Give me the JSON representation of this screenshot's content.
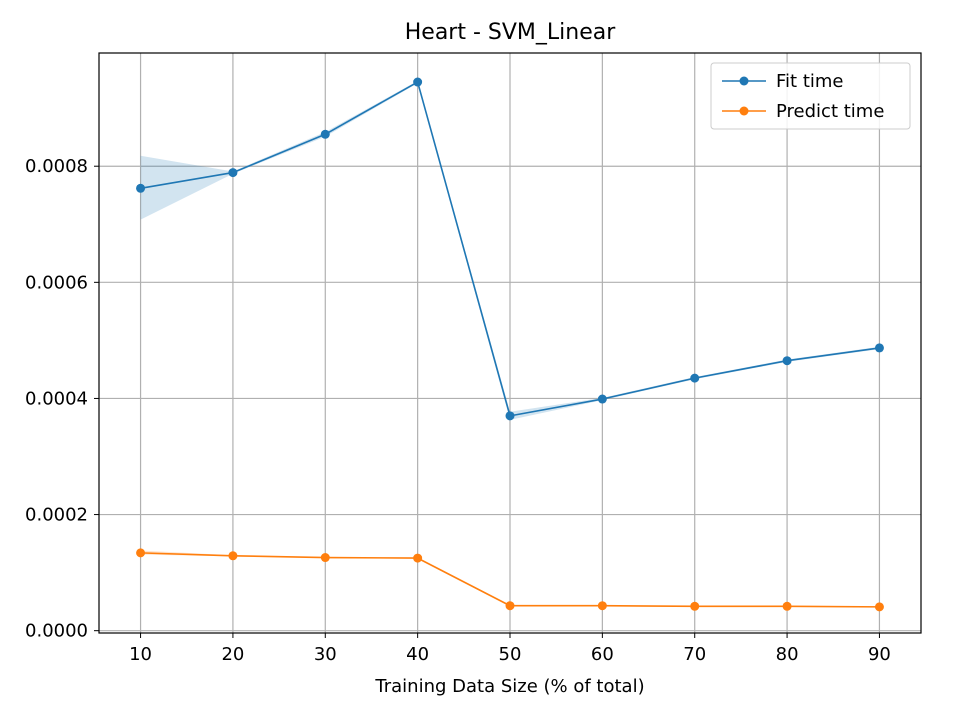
{
  "chart_data": {
    "type": "line",
    "title": "Heart - SVM_Linear",
    "xlabel": "Training Data Size (% of total)",
    "ylabel": "",
    "x": [
      10,
      20,
      30,
      40,
      50,
      60,
      70,
      80,
      90
    ],
    "xlim": [
      5.5,
      94.5
    ],
    "ylim": [
      -4e-06,
      0.000995
    ],
    "xticks": [
      10,
      20,
      30,
      40,
      50,
      60,
      70,
      80,
      90
    ],
    "yticks": [
      0.0,
      0.0002,
      0.0004,
      0.0006,
      0.0008
    ],
    "ytick_labels": [
      "0.0000",
      "0.0002",
      "0.0004",
      "0.0006",
      "0.0008"
    ],
    "grid": true,
    "legend_position": "top-right",
    "series": [
      {
        "name": "Fit time",
        "color": "#1f77b4",
        "values": [
          0.000762,
          0.000789,
          0.000855,
          0.000945,
          0.00037,
          0.000399,
          0.000435,
          0.000465,
          0.000487
        ],
        "band_lower": [
          0.000708,
          0.000787,
          0.000851,
          0.000943,
          0.000363,
          0.000397,
          0.000433,
          0.000463,
          0.000485
        ],
        "band_upper": [
          0.000818,
          0.000791,
          0.000859,
          0.000947,
          0.000377,
          0.000401,
          0.000437,
          0.000467,
          0.000489
        ]
      },
      {
        "name": "Predict time",
        "color": "#ff7f0e",
        "values": [
          0.000134,
          0.000129,
          0.000126,
          0.000125,
          4.3e-05,
          4.3e-05,
          4.2e-05,
          4.2e-05,
          4.1e-05
        ],
        "band_lower": [
          0.000131,
          0.000128,
          0.000125,
          0.000124,
          4.2e-05,
          4.2e-05,
          4.1e-05,
          4.1e-05,
          4e-05
        ],
        "band_upper": [
          0.000138,
          0.00013,
          0.000127,
          0.000126,
          4.4e-05,
          4.4e-05,
          4.3e-05,
          4.3e-05,
          4.2e-05
        ]
      }
    ]
  }
}
